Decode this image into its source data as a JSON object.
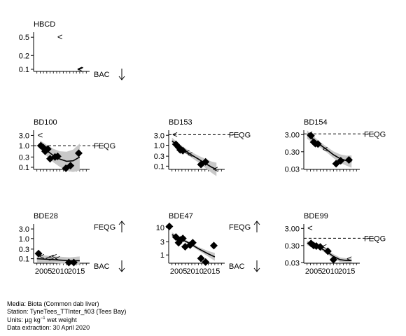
{
  "chart_data": [
    {
      "type": "scatter",
      "title": "HBCD",
      "ylog": true,
      "yticks": [
        "0.1",
        "0.2",
        "0.5"
      ],
      "ylim": [
        0.09,
        0.6
      ],
      "xlim": [
        2002,
        2019
      ],
      "points": [],
      "less_than": [
        {
          "x": 2010,
          "y": 0.5
        },
        {
          "x": 2016,
          "y": 0.1
        }
      ],
      "trend": [
        {
          "x": 2015.5,
          "y": 0.097
        },
        {
          "x": 2017,
          "y": 0.11
        }
      ],
      "band": [],
      "threshold_line": null,
      "labels": [
        {
          "text": "BAC",
          "arrow": "down"
        }
      ]
    },
    {
      "type": "scatter",
      "title": "BD100",
      "ylog": true,
      "yticks": [
        "0.1",
        "0.3",
        "1.0",
        "3.0"
      ],
      "ylim": [
        0.08,
        4.5
      ],
      "xlim": [
        2002,
        2019
      ],
      "points": [
        {
          "x": 2004.2,
          "y": 1.0
        },
        {
          "x": 2005,
          "y": 0.8
        },
        {
          "x": 2005.5,
          "y": 0.55
        },
        {
          "x": 2006.3,
          "y": 0.7
        },
        {
          "x": 2007,
          "y": 0.25
        },
        {
          "x": 2008.5,
          "y": 0.3
        },
        {
          "x": 2009.3,
          "y": 0.32
        },
        {
          "x": 2011.8,
          "y": 0.09
        },
        {
          "x": 2013.2,
          "y": 0.12
        },
        {
          "x": 2015.7,
          "y": 0.45
        }
      ],
      "less_than": [
        {
          "x": 2004,
          "y": 3.0
        }
      ],
      "trend": [
        {
          "x": 2004,
          "y": 1.1
        },
        {
          "x": 2006,
          "y": 0.6
        },
        {
          "x": 2008,
          "y": 0.35
        },
        {
          "x": 2010,
          "y": 0.24
        },
        {
          "x": 2012,
          "y": 0.19
        },
        {
          "x": 2014,
          "y": 0.2
        },
        {
          "x": 2016,
          "y": 0.3
        }
      ],
      "band": [
        0.15,
        0.2,
        0.24,
        0.28,
        0.34,
        0.4,
        0.48
      ],
      "threshold_line": {
        "y": 1.0,
        "x0": 2002,
        "x1": 2017
      },
      "labels": [
        {
          "text": "FEQG",
          "arrow": null
        }
      ]
    },
    {
      "type": "scatter",
      "title": "BD153",
      "ylog": true,
      "yticks": [
        "0.1",
        "0.3",
        "1.0",
        "3.0"
      ],
      "ylim": [
        0.07,
        4.5
      ],
      "xlim": [
        2002,
        2019
      ],
      "points": [
        {
          "x": 2004.2,
          "y": 1.1
        },
        {
          "x": 2005,
          "y": 0.8
        },
        {
          "x": 2005.5,
          "y": 0.6
        },
        {
          "x": 2006.3,
          "y": 0.55
        },
        {
          "x": 2011.8,
          "y": 0.12
        },
        {
          "x": 2013.2,
          "y": 0.16
        }
      ],
      "less_than": [
        {
          "x": 2003.9,
          "y": 3.2
        },
        {
          "x": 2007.6,
          "y": 0.45
        },
        {
          "x": 2008.5,
          "y": 0.35
        },
        {
          "x": 2016.2,
          "y": 0.07
        }
      ],
      "trend": [
        {
          "x": 2003,
          "y": 1.6
        },
        {
          "x": 2005,
          "y": 0.9
        },
        {
          "x": 2007,
          "y": 0.55
        },
        {
          "x": 2009,
          "y": 0.34
        },
        {
          "x": 2011,
          "y": 0.22
        },
        {
          "x": 2013,
          "y": 0.14
        },
        {
          "x": 2015,
          "y": 0.09
        },
        {
          "x": 2016.5,
          "y": 0.07
        }
      ],
      "band": [
        0.12,
        0.1,
        0.09,
        0.1,
        0.12,
        0.16,
        0.2,
        0.24
      ],
      "threshold_line": {
        "y": 3.2,
        "x0": 2002,
        "x1": 2017.5
      },
      "labels": [
        {
          "text": "FEQG",
          "arrow": null
        }
      ]
    },
    {
      "type": "scatter",
      "title": "BD154",
      "ylog": true,
      "yticks": [
        "0.03",
        "0.30",
        "3.00"
      ],
      "ylim": [
        0.028,
        4.5
      ],
      "xlim": [
        2002,
        2019
      ],
      "points": [
        {
          "x": 2004.2,
          "y": 2.6
        },
        {
          "x": 2005,
          "y": 1.1
        },
        {
          "x": 2005.5,
          "y": 0.9
        },
        {
          "x": 2006.3,
          "y": 0.85
        },
        {
          "x": 2011.8,
          "y": 0.06
        },
        {
          "x": 2013.2,
          "y": 0.09
        },
        {
          "x": 2015.7,
          "y": 0.1
        }
      ],
      "less_than": [
        {
          "x": 2003.9,
          "y": 3.3
        },
        {
          "x": 2008.5,
          "y": 0.4
        }
      ],
      "trend": [
        {
          "x": 2003,
          "y": 3.0
        },
        {
          "x": 2005,
          "y": 1.5
        },
        {
          "x": 2007,
          "y": 0.75
        },
        {
          "x": 2009,
          "y": 0.4
        },
        {
          "x": 2011,
          "y": 0.2
        },
        {
          "x": 2013,
          "y": 0.12
        },
        {
          "x": 2015,
          "y": 0.09
        },
        {
          "x": 2016.5,
          "y": 0.08
        }
      ],
      "band": [
        0.15,
        0.12,
        0.1,
        0.1,
        0.12,
        0.15,
        0.18,
        0.22
      ],
      "threshold_line": {
        "y": 3.3,
        "x0": 2002,
        "x1": 2017.5
      },
      "labels": [
        {
          "text": "FEQG",
          "arrow": null
        }
      ]
    },
    {
      "type": "scatter",
      "title": "BDE28",
      "ylog": true,
      "yticks": [
        "0.1",
        "0.3",
        "1.0",
        "3.0"
      ],
      "ylim": [
        0.06,
        4.5
      ],
      "xlim": [
        2002,
        2019
      ],
      "points": [
        {
          "x": 2003.5,
          "y": 0.18
        },
        {
          "x": 2012.7,
          "y": 0.065
        },
        {
          "x": 2014.2,
          "y": 0.065
        }
      ],
      "less_than": [
        {
          "x": 2004.5,
          "y": 0.13
        },
        {
          "x": 2006.4,
          "y": 0.1
        },
        {
          "x": 2007.4,
          "y": 0.12
        },
        {
          "x": 2008.3,
          "y": 0.13
        },
        {
          "x": 2009.3,
          "y": 0.1
        }
      ],
      "trend": [
        {
          "x": 2003,
          "y": 0.1
        },
        {
          "x": 2008,
          "y": 0.09
        },
        {
          "x": 2013,
          "y": 0.08
        },
        {
          "x": 2016,
          "y": 0.08
        }
      ],
      "band": [
        0.15,
        0.12,
        0.12,
        0.15
      ],
      "threshold_line": null,
      "labels": [
        {
          "text": "FEQG",
          "arrow": "up"
        },
        {
          "text": "BAC",
          "arrow": "down"
        }
      ]
    },
    {
      "type": "scatter",
      "title": "BDE47",
      "ylog": true,
      "yticks": [
        "1",
        "3",
        "10"
      ],
      "ylim": [
        0.5,
        12
      ],
      "xlim": [
        2002,
        2019
      ],
      "points": [
        {
          "x": 2002.2,
          "y": 11
        },
        {
          "x": 2004.2,
          "y": 4.5
        },
        {
          "x": 2005,
          "y": 2.8
        },
        {
          "x": 2005.5,
          "y": 3.5
        },
        {
          "x": 2006.3,
          "y": 4.0
        },
        {
          "x": 2007,
          "y": 2.0
        },
        {
          "x": 2008.5,
          "y": 2.3
        },
        {
          "x": 2009.3,
          "y": 2.8
        },
        {
          "x": 2011.8,
          "y": 0.75
        },
        {
          "x": 2013.2,
          "y": 0.55
        },
        {
          "x": 2015.7,
          "y": 2.2
        }
      ],
      "less_than": [],
      "trend": [
        {
          "x": 2003,
          "y": 5.5
        },
        {
          "x": 2005,
          "y": 4.2
        },
        {
          "x": 2008,
          "y": 2.8
        },
        {
          "x": 2011,
          "y": 1.7
        },
        {
          "x": 2014,
          "y": 1.1
        },
        {
          "x": 2016,
          "y": 0.85
        }
      ],
      "band": [
        0.08,
        0.06,
        0.05,
        0.06,
        0.1,
        0.14
      ],
      "threshold_line": null,
      "labels": [
        {
          "text": "FEQG",
          "arrow": "up"
        },
        {
          "text": "BAC",
          "arrow": "down"
        }
      ]
    },
    {
      "type": "scatter",
      "title": "BDE99",
      "ylog": true,
      "yticks": [
        "0.03",
        "0.30",
        "3.00"
      ],
      "ylim": [
        0.028,
        4.5
      ],
      "xlim": [
        2002,
        2019
      ],
      "points": [
        {
          "x": 2004.2,
          "y": 0.4
        },
        {
          "x": 2005,
          "y": 0.3
        },
        {
          "x": 2005.8,
          "y": 0.28
        },
        {
          "x": 2007,
          "y": 0.25
        },
        {
          "x": 2009.3,
          "y": 0.14
        },
        {
          "x": 2011,
          "y": 0.045
        }
      ],
      "less_than": [
        {
          "x": 2003.9,
          "y": 3.1
        },
        {
          "x": 2008.2,
          "y": 0.25
        },
        {
          "x": 2015.8,
          "y": 0.05
        }
      ],
      "trend": [
        {
          "x": 2003,
          "y": 0.42
        },
        {
          "x": 2005,
          "y": 0.32
        },
        {
          "x": 2007,
          "y": 0.22
        },
        {
          "x": 2009,
          "y": 0.13
        },
        {
          "x": 2011,
          "y": 0.07
        },
        {
          "x": 2013,
          "y": 0.045
        },
        {
          "x": 2015,
          "y": 0.04
        },
        {
          "x": 2016.5,
          "y": 0.04
        }
      ],
      "band": [
        0.08,
        0.07,
        0.07,
        0.07,
        0.08,
        0.08,
        0.08,
        0.08
      ],
      "threshold_line": {
        "y": 0.8,
        "x0": 2002,
        "x1": 2017.5
      },
      "labels": [
        {
          "text": "FEQG",
          "arrow": null
        }
      ]
    }
  ],
  "xticks": [
    {
      "value": 2005,
      "label": "2005"
    },
    {
      "value": 2010,
      "label": "2010"
    },
    {
      "value": 2015,
      "label": "2015"
    }
  ],
  "footer": {
    "media": "Media: Biota (Common dab liver)",
    "station": "Station: TyneTees_TTInter_fi03 (Tees Bay)",
    "units_prefix": "Units:  µg kg",
    "units_sup": "−1",
    "units_suffix": " wet weight",
    "extraction": "Data extraction: 30 April 2020"
  }
}
